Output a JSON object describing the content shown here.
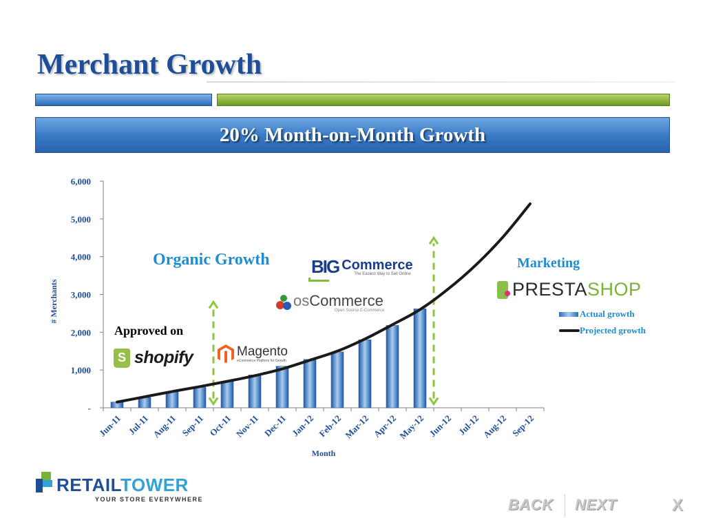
{
  "slide": {
    "title": "Merchant Growth",
    "banner": "20% Month-on-Month Growth"
  },
  "annotations": {
    "organic": "Organic Growth",
    "marketing": "Marketing",
    "approved_on": "Approved on"
  },
  "logos": {
    "shopify": "shopify",
    "magento_name": "Magento",
    "magento_sub": "eCommerce Platform for Growth",
    "oscommerce_prefix": "os",
    "oscommerce_name": "Commerce",
    "oscommerce_sub": "Open Source E-Commerce",
    "bigcommerce_mark": "BIG",
    "bigcommerce_name": "Commerce",
    "bigcommerce_sub": "The Easiest Way to Sell Online",
    "prestashop_a": "PRESTA",
    "prestashop_b": "SHOP"
  },
  "chart_data": {
    "type": "bar",
    "categories": [
      "Jun-11",
      "Jul-11",
      "Aug-11",
      "Sep-11",
      "Oct-11",
      "Nov-11",
      "Dec-11",
      "Jan-12",
      "Feb-12",
      "Mar-12",
      "Apr-12",
      "May-12",
      "Jun-12",
      "Jul-12",
      "Aug-12",
      "Sep-12"
    ],
    "series": [
      {
        "name": "Actual growth",
        "type": "bar",
        "values": [
          150,
          270,
          430,
          540,
          700,
          870,
          1100,
          1280,
          1480,
          1800,
          2180,
          2620,
          null,
          null,
          null,
          null
        ]
      },
      {
        "name": "Projected growth",
        "type": "line",
        "values": [
          150,
          290,
          430,
          560,
          700,
          850,
          1030,
          1260,
          1500,
          1820,
          2200,
          2600,
          3130,
          3760,
          4510,
          5400
        ]
      }
    ],
    "ylim": [
      0,
      6000
    ],
    "yticks": [
      0,
      1000,
      2000,
      3000,
      4000,
      5000,
      6000
    ],
    "ytick_labels": [
      "-",
      "1,000",
      "2,000",
      "3,000",
      "4,000",
      "5,000",
      "6,000"
    ],
    "ylabel": "# Merchants",
    "xlabel": "Month",
    "legend_position": "right",
    "phase_markers": [
      {
        "after_category": "Sep-12",
        "between": [
          "Sep-11",
          "Oct-11"
        ],
        "from": 100,
        "to": 2800
      },
      {
        "between": [
          "May-12",
          "Jun-12"
        ],
        "from": 100,
        "to": 4500
      }
    ],
    "colors": {
      "bar": "#2b6cb8",
      "line": "#1a1a1a",
      "marker": "#8cc63f",
      "axis_text": "#1f4e99"
    }
  },
  "brand": {
    "name_a": "RETAIL",
    "name_b": "TOWER",
    "tagline": "YOUR STORE EVERYWHERE"
  },
  "nav": {
    "back": "BACK",
    "next": "NEXT",
    "close": "X"
  }
}
